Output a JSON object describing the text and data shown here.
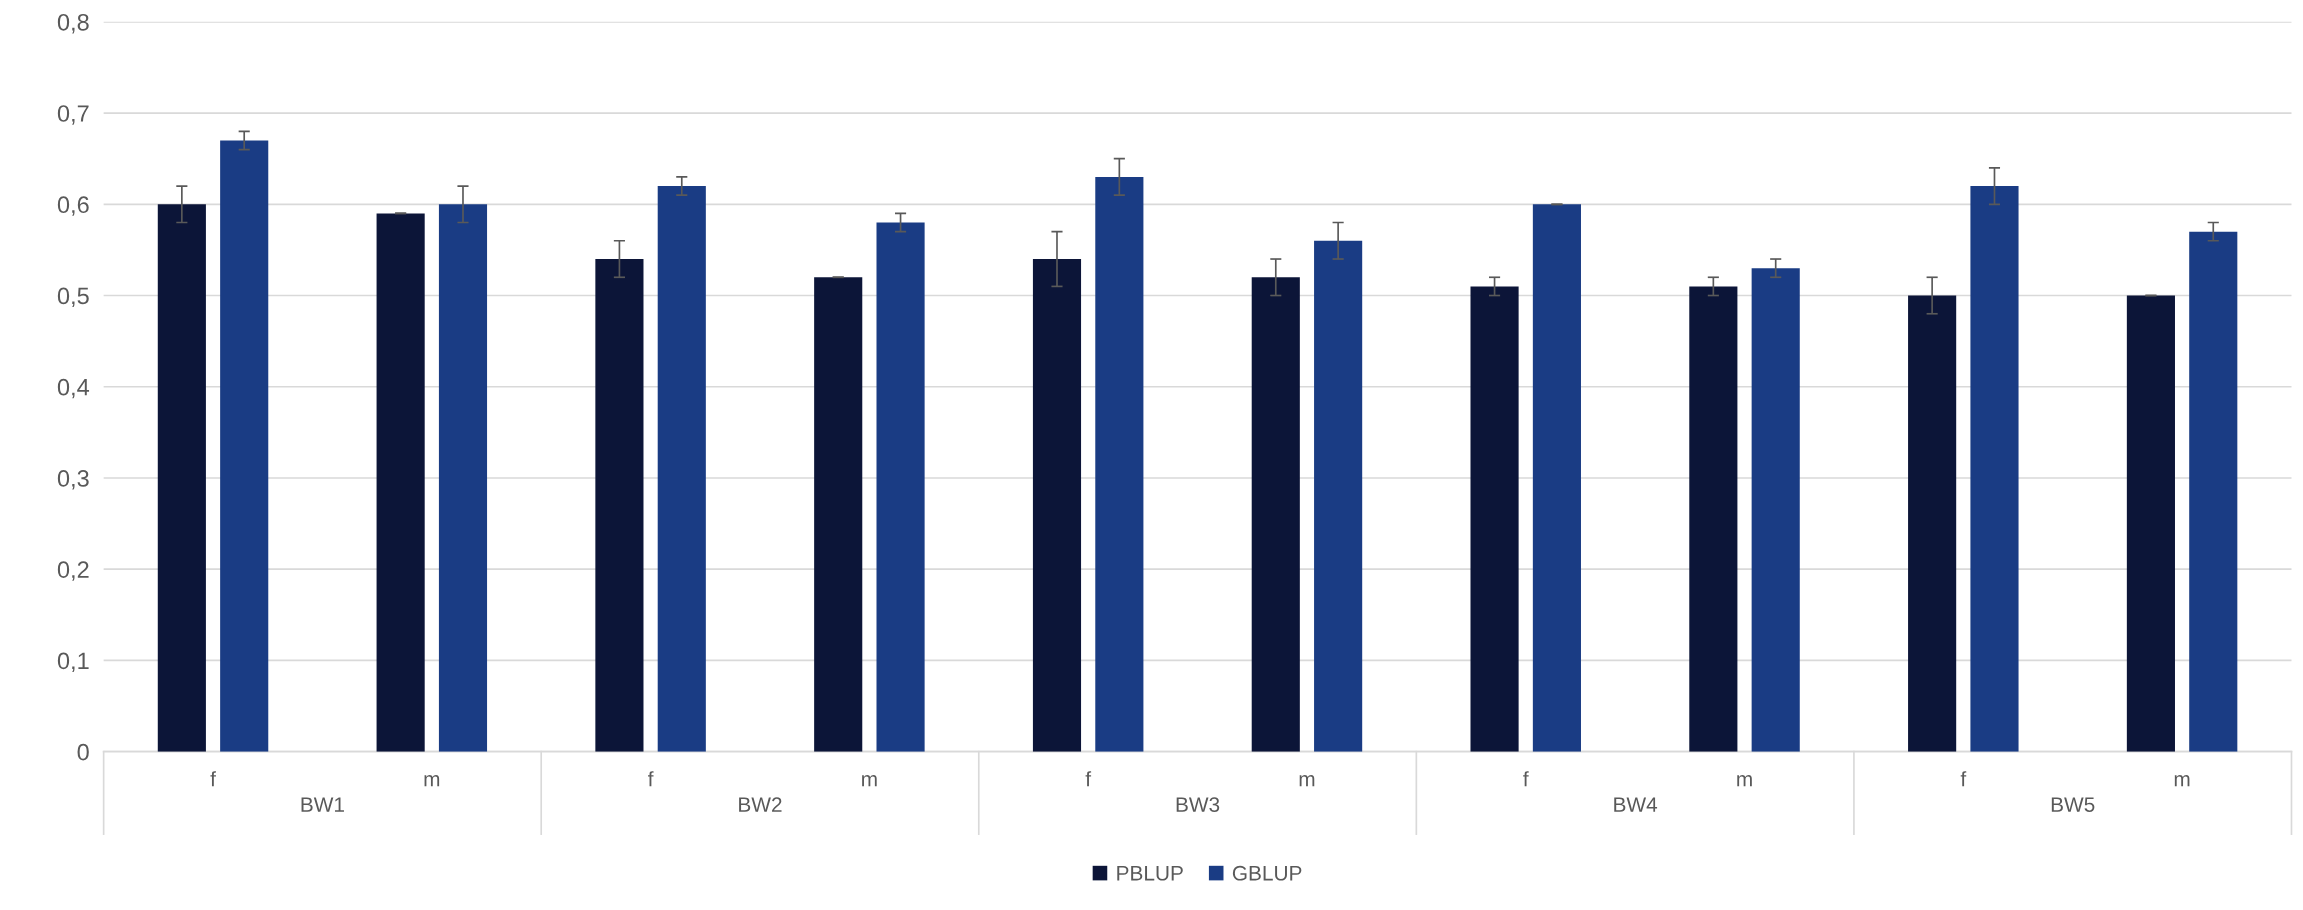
{
  "chart_data": {
    "type": "bar",
    "categories": [
      "f",
      "m",
      "f",
      "m",
      "f",
      "m",
      "f",
      "m",
      "f",
      "m"
    ],
    "annotations": [
      "BW1",
      "BW2",
      "BW3",
      "BW4",
      "BW5"
    ],
    "series": [
      {
        "name": "PBLUP",
        "color": "#0c1538",
        "values": [
          0.6,
          0.59,
          0.54,
          0.52,
          0.54,
          0.52,
          0.51,
          0.51,
          0.5,
          0.5
        ],
        "errors": [
          0.02,
          0,
          0.02,
          0,
          0.03,
          0.02,
          0.01,
          0.01,
          0.02,
          0
        ]
      },
      {
        "name": "GBLUP",
        "color": "#1a3c84",
        "values": [
          0.67,
          0.6,
          0.62,
          0.58,
          0.63,
          0.56,
          0.6,
          0.53,
          0.62,
          0.57
        ],
        "errors": [
          0.01,
          0.02,
          0.01,
          0.01,
          0.02,
          0.02,
          0,
          0.01,
          0.02,
          0.01
        ]
      }
    ],
    "ylim": [
      0,
      0.8
    ],
    "yticks": [
      0,
      {
        "value": 0.1,
        "label": "0,1"
      },
      {
        "value": 0.2,
        "label": "0,2"
      },
      {
        "value": 0.3,
        "label": "0,3"
      },
      {
        "value": 0.4,
        "label": "0,4"
      },
      {
        "value": 0.5,
        "label": "0,5"
      },
      {
        "value": 0.6,
        "label": "0,6"
      },
      {
        "value": 0.7,
        "label": "0,7"
      },
      {
        "value": 0.8,
        "label": "0,8"
      }
    ],
    "grid": "y",
    "legend": "bottom"
  }
}
